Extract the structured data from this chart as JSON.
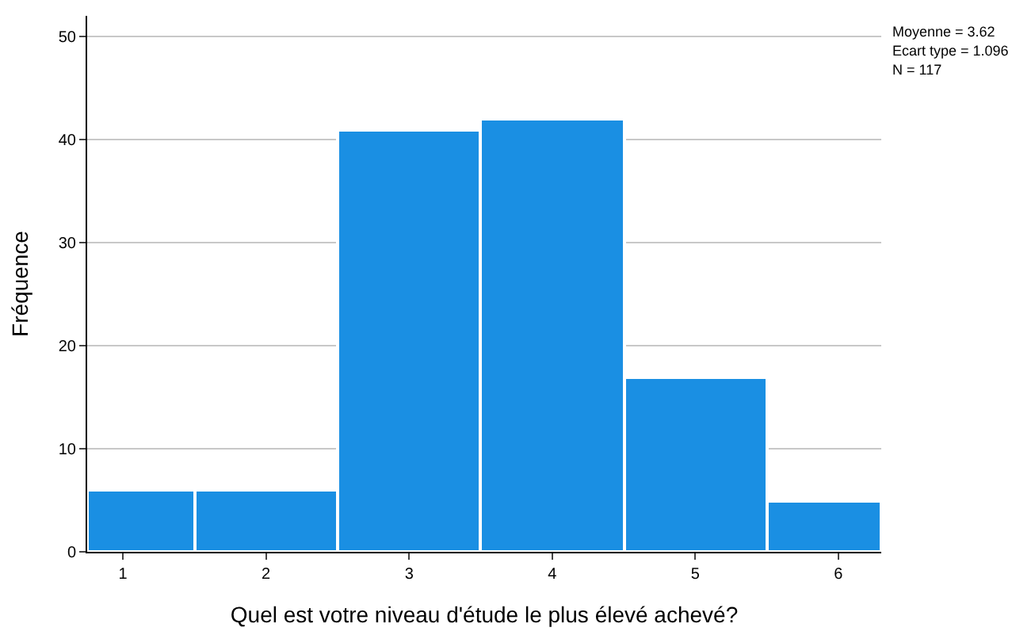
{
  "chart_data": {
    "type": "histogram",
    "xlabel": "Quel est votre niveau d'étude le plus élevé achevé?",
    "ylabel": "Fréquence",
    "bins": [
      0.75,
      1.5,
      2.5,
      3.5,
      4.5,
      5.5,
      6.3
    ],
    "values": [
      6,
      6,
      41,
      42,
      17,
      5
    ],
    "color": "#1a8fe3",
    "xlim": [
      0.75,
      6.3
    ],
    "xticks": [
      1,
      2,
      3,
      4,
      5,
      6
    ],
    "ylim": [
      0,
      52
    ],
    "yticks": [
      0,
      10,
      20,
      30,
      40,
      50
    ],
    "grid": "y",
    "legend": false,
    "annotations": [
      "Moyenne = 3.62",
      "Ecart type = 1.096",
      "N = 117"
    ]
  }
}
